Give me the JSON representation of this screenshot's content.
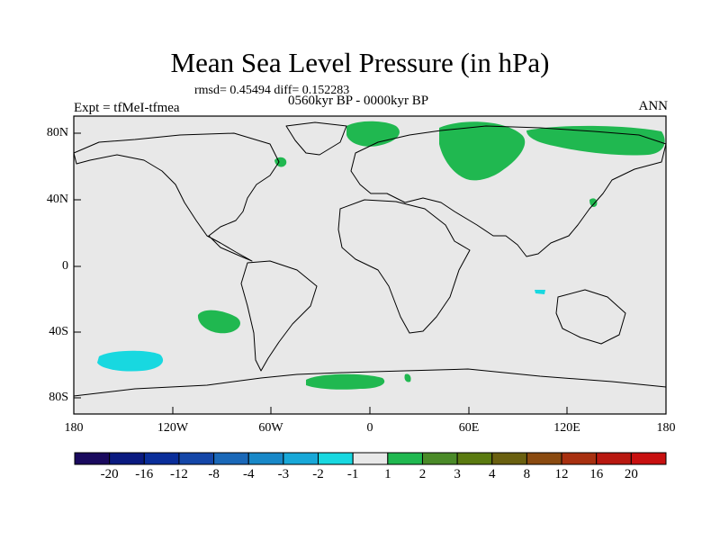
{
  "title": "Mean Sea Level Pressure (in hPa)",
  "stats_text": "rmsd= 0.45494 diff= 0.152283",
  "period_text": "0560kyr BP - 0000kyr BP",
  "experiment_label": "Expt = tfMeI-tfmea",
  "season_label": "ANN",
  "lat_ticks": [
    "80N",
    "40N",
    "0",
    "40S",
    "80S"
  ],
  "lon_ticks": [
    "180",
    "120W",
    "60W",
    "0",
    "60E",
    "120E",
    "180"
  ],
  "colorbar": {
    "labels": [
      "-20",
      "-16",
      "-12",
      "-8",
      "-4",
      "-3",
      "-2",
      "-1",
      "1",
      "2",
      "3",
      "4",
      "8",
      "12",
      "16",
      "20"
    ],
    "colors": [
      "#1a0a5e",
      "#0a1a80",
      "#0a2e9a",
      "#1446a8",
      "#1a68b8",
      "#1888c8",
      "#18a8d8",
      "#18d8e0",
      "#e8e8e8",
      "#20b850",
      "#4a8a28",
      "#5a7a10",
      "#6a6010",
      "#8a4a10",
      "#a83010",
      "#b81810",
      "#c81010"
    ]
  },
  "background_color": "#e8e8e8"
}
